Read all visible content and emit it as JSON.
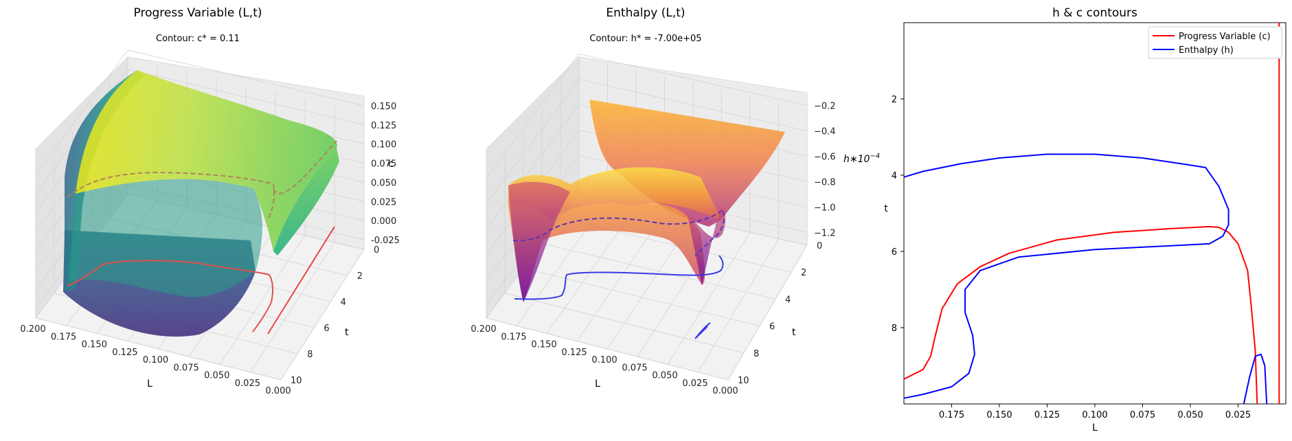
{
  "chart_data": [
    {
      "type": "surface3d",
      "title": "Progress Variable (L,t)",
      "subtitle": "Contour: c* = 0.11",
      "xlabel": "L",
      "ylabel": "t",
      "zlabel": "c",
      "colormap": "viridis",
      "contour_color": "#e03030",
      "xlim": [
        0.0,
        0.2
      ],
      "ylim": [
        0,
        10
      ],
      "zlim": [
        -0.03,
        0.16
      ],
      "x_ticks": [
        "0.200",
        "0.175",
        "0.150",
        "0.125",
        "0.100",
        "0.075",
        "0.050",
        "0.025",
        "0.000"
      ],
      "y_ticks": [
        "0",
        "2",
        "4",
        "6",
        "8",
        "10"
      ],
      "z_ticks": [
        "-0.025",
        "0.000",
        "0.025",
        "0.050",
        "0.075",
        "0.100",
        "0.125",
        "0.150"
      ],
      "surface_corners": {
        "L_0.200_t_0": 0.14,
        "L_0.200_t_10": 0.0,
        "L_0.000_t_0": 0.1,
        "L_0.000_t_10": -0.02
      }
    },
    {
      "type": "surface3d",
      "title": "Enthalpy (L,t)",
      "subtitle": "Contour: h* = -7.00e+05",
      "xlabel": "L",
      "ylabel": "t",
      "zlabel": "h * 10^-4",
      "zlabel_display": "h∗10",
      "zlabel_exp": "−4",
      "colormap": "plasma",
      "contour_color": "#3a3ae0",
      "xlim": [
        0.0,
        0.2
      ],
      "ylim": [
        0,
        10
      ],
      "zlim": [
        -1.3,
        -0.1
      ],
      "x_ticks": [
        "0.200",
        "0.175",
        "0.150",
        "0.125",
        "0.100",
        "0.075",
        "0.050",
        "0.025",
        "0.000"
      ],
      "y_ticks": [
        "0",
        "2",
        "4",
        "6",
        "8",
        "10"
      ],
      "z_ticks": [
        "−1.2",
        "−1.0",
        "−0.8",
        "−0.6",
        "−0.4",
        "−0.2"
      ]
    },
    {
      "type": "line",
      "title": "h & c contours",
      "xlabel": "L",
      "ylabel": "t",
      "xlim": [
        0.2,
        0.0
      ],
      "ylim": [
        10,
        0
      ],
      "x_ticks": [
        0.175,
        0.15,
        0.125,
        0.1,
        0.075,
        0.05,
        0.025
      ],
      "x_tick_labels": [
        "0.175",
        "0.150",
        "0.125",
        "0.100",
        "0.075",
        "0.050",
        "0.025"
      ],
      "y_ticks": [
        2,
        4,
        6,
        8
      ],
      "y_tick_labels": [
        "2",
        "4",
        "6",
        "8"
      ],
      "legend": "top-right",
      "series": [
        {
          "name": "Progress Variable (c)",
          "color": "#ff0000",
          "segments": [
            [
              [
                0.2,
                9.35
              ],
              [
                0.19,
                9.1
              ],
              [
                0.186,
                8.75
              ],
              [
                0.184,
                8.3
              ],
              [
                0.18,
                7.5
              ],
              [
                0.172,
                6.85
              ],
              [
                0.16,
                6.4
              ],
              [
                0.145,
                6.05
              ],
              [
                0.12,
                5.7
              ],
              [
                0.09,
                5.5
              ],
              [
                0.06,
                5.4
              ],
              [
                0.04,
                5.35
              ],
              [
                0.035,
                5.37
              ],
              [
                0.03,
                5.5
              ],
              [
                0.025,
                5.8
              ],
              [
                0.02,
                6.5
              ],
              [
                0.018,
                7.5
              ],
              [
                0.016,
                8.6
              ],
              [
                0.015,
                10.0
              ]
            ],
            [
              [
                0.0035,
                0.0
              ],
              [
                0.0035,
                10.0
              ]
            ]
          ]
        },
        {
          "name": "Enthalpy (h)",
          "color": "#0000ff",
          "segments": [
            [
              [
                0.2,
                4.05
              ],
              [
                0.19,
                3.9
              ],
              [
                0.17,
                3.7
              ],
              [
                0.15,
                3.55
              ],
              [
                0.125,
                3.45
              ],
              [
                0.1,
                3.45
              ],
              [
                0.075,
                3.55
              ],
              [
                0.055,
                3.7
              ],
              [
                0.042,
                3.8
              ],
              [
                0.035,
                4.3
              ],
              [
                0.03,
                4.9
              ],
              [
                0.03,
                5.3
              ],
              [
                0.033,
                5.6
              ],
              [
                0.04,
                5.8
              ],
              [
                0.06,
                5.85
              ],
              [
                0.1,
                5.95
              ],
              [
                0.14,
                6.15
              ],
              [
                0.16,
                6.5
              ],
              [
                0.168,
                7.0
              ],
              [
                0.168,
                7.6
              ],
              [
                0.164,
                8.2
              ],
              [
                0.163,
                8.7
              ],
              [
                0.166,
                9.2
              ],
              [
                0.175,
                9.55
              ],
              [
                0.19,
                9.75
              ],
              [
                0.2,
                9.85
              ]
            ],
            [
              [
                0.022,
                10.0
              ],
              [
                0.019,
                9.3
              ],
              [
                0.016,
                8.75
              ],
              [
                0.013,
                8.7
              ],
              [
                0.011,
                9.0
              ],
              [
                0.01,
                10.0
              ]
            ]
          ]
        }
      ]
    }
  ]
}
